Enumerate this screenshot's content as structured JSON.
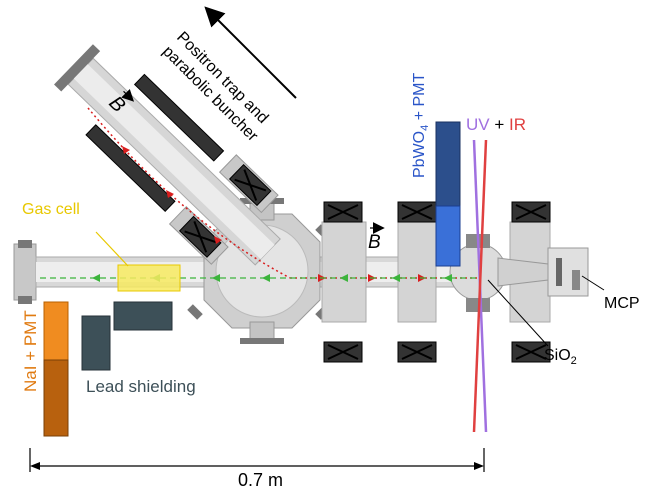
{
  "labels": {
    "trap": [
      "Positron trap and",
      "parabolic buncher"
    ],
    "b_top": "B",
    "b_mid": "B",
    "pbwo_main": "PbWO",
    "pbwo_sub": "4",
    "pbwo_tail": " + PMT",
    "uv": "UV",
    "plus": " + ",
    "ir": "IR",
    "gas_cell": "Gas cell",
    "nai": "NaI + PMT",
    "lead": "Lead shielding",
    "mcp": "MCP",
    "sio2_main": "SiO",
    "sio2_sub": "2",
    "scale": "0.7 m"
  },
  "colors": {
    "pbwo": "#2a55c8",
    "uv": "#a070e0",
    "ir": "#e04040",
    "gas_cell": "#e8c800",
    "nai": "#e07a10",
    "lead": "#3d5058",
    "beam_red": "#d81e1e",
    "beam_green": "#3cb43c"
  }
}
